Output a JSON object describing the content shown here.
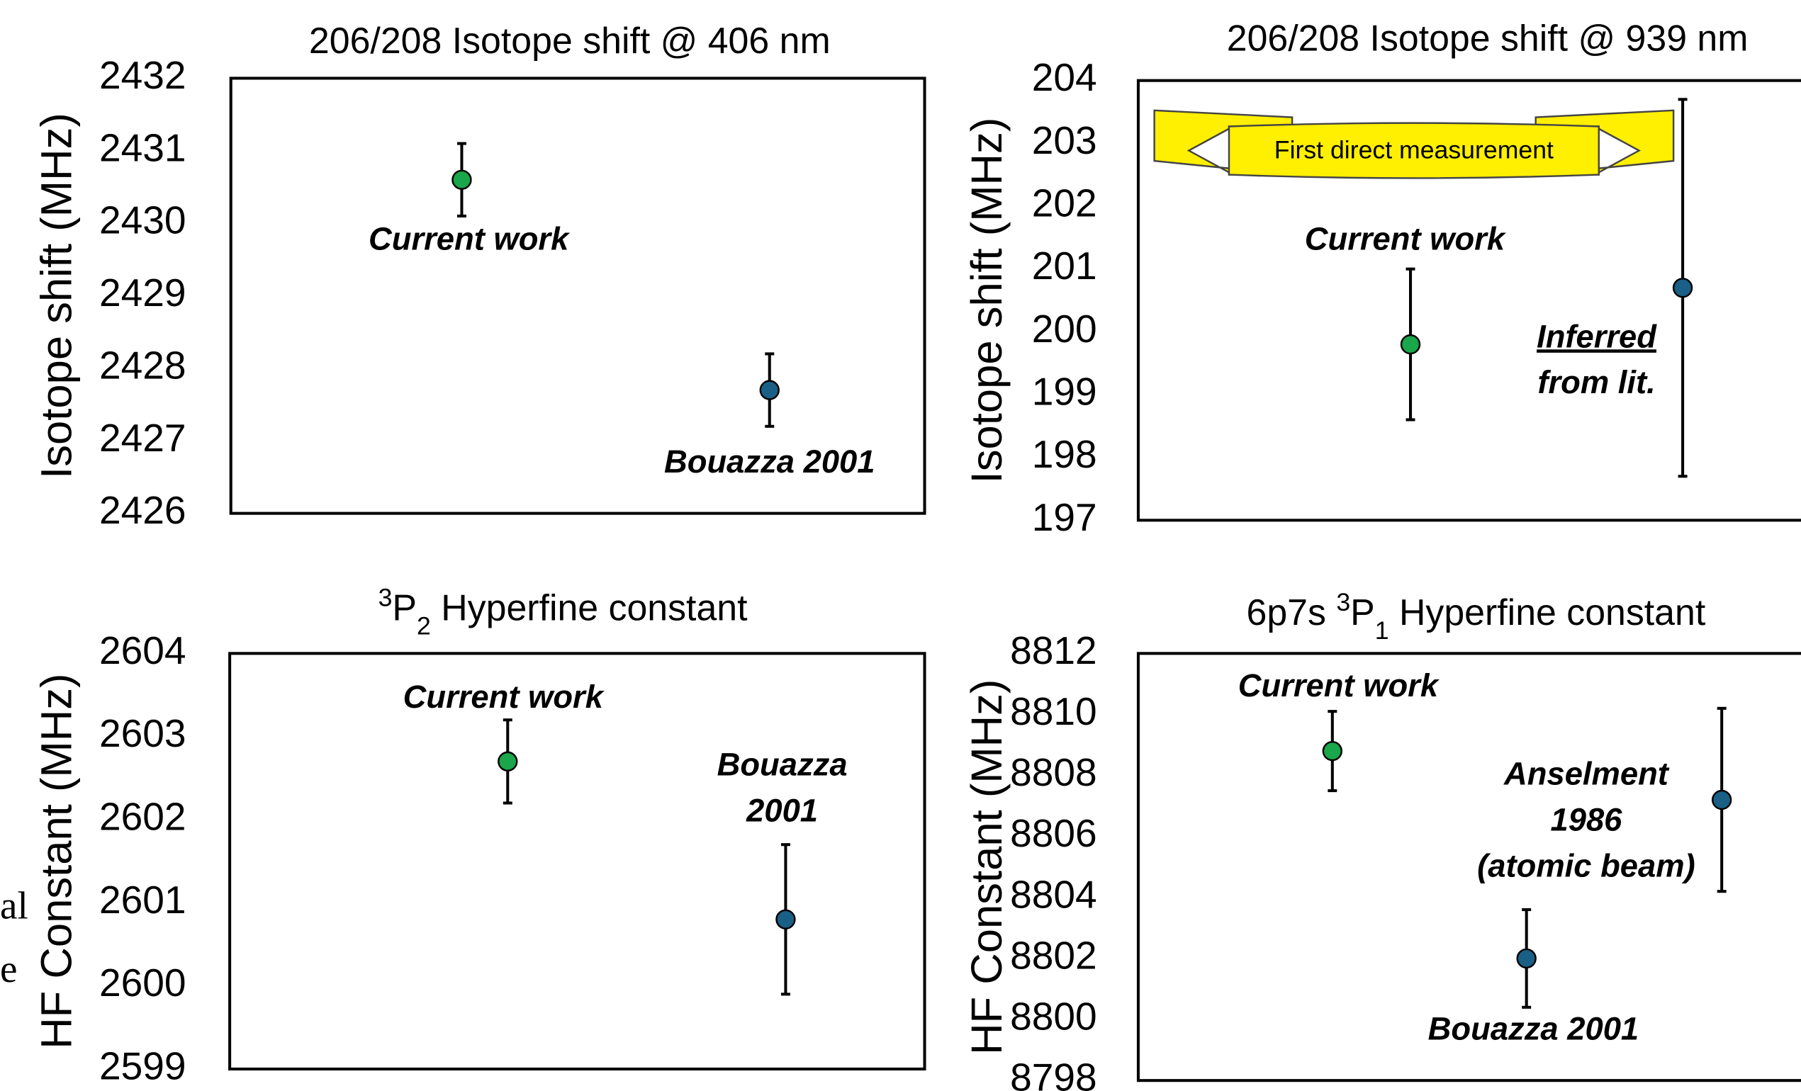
{
  "fragments": [
    "al",
    "e"
  ],
  "chart_data": [
    {
      "type": "scatter",
      "title": "206/208 Isotope shift @ 406 nm",
      "y_label": "Isotope shift (MHz)",
      "ylim": [
        2426,
        2432
      ],
      "yticks": [
        2426,
        2427,
        2428,
        2429,
        2430,
        2431,
        2432
      ],
      "series": [
        {
          "label": [
            "Current work"
          ],
          "color": "#1aa64a",
          "values": [
            2430.6
          ],
          "errors": [
            0.5
          ]
        },
        {
          "label": [
            "Bouazza 2001"
          ],
          "color": "#1a5f85",
          "values": [
            2427.7
          ],
          "errors": [
            0.5
          ]
        }
      ]
    },
    {
      "type": "scatter",
      "title": "206/208 Isotope shift @ 939 nm",
      "y_label": "Isotope shift (MHz)",
      "ylim": [
        197,
        204
      ],
      "yticks": [
        197,
        198,
        199,
        200,
        201,
        202,
        203,
        204
      ],
      "banner": "First direct measurement",
      "series": [
        {
          "label": [
            "Current work"
          ],
          "color": "#1aa64a",
          "values": [
            199.8
          ],
          "errors": [
            1.2
          ]
        },
        {
          "label": [
            "Inferred",
            "from lit."
          ],
          "color": "#1a5f85",
          "values": [
            200.7
          ],
          "errors": [
            3.0
          ]
        }
      ]
    },
    {
      "type": "scatter",
      "title": [
        "3",
        "P",
        "2",
        " Hyperfine constant"
      ],
      "y_label": "HF Constant (MHz)",
      "ylim": [
        2599,
        2604
      ],
      "yticks": [
        2599,
        2600,
        2601,
        2602,
        2603,
        2604
      ],
      "series": [
        {
          "label": [
            "Current work"
          ],
          "color": "#1aa64a",
          "values": [
            2602.7
          ],
          "errors": [
            0.5
          ]
        },
        {
          "label": [
            "Bouazza",
            "2001"
          ],
          "color": "#1a5f85",
          "values": [
            2600.8
          ],
          "errors": [
            0.9
          ]
        }
      ]
    },
    {
      "type": "scatter",
      "title": [
        "6p7s ",
        "3",
        "P",
        "1",
        " Hyperfine constant"
      ],
      "y_label": "HF Constant (MHz)",
      "ylim": [
        8798,
        8812
      ],
      "yticks": [
        8798,
        8800,
        8802,
        8804,
        8806,
        8808,
        8810,
        8812
      ],
      "series": [
        {
          "label": [
            "Current work"
          ],
          "color": "#1aa64a",
          "values": [
            8808.8
          ],
          "errors": [
            1.3
          ]
        },
        {
          "label": [
            "Bouazza 2001"
          ],
          "color": "#1a5f85",
          "values": [
            8802.0
          ],
          "errors": [
            1.6
          ]
        },
        {
          "label": [
            "Anselment",
            "1986",
            "(atomic beam)"
          ],
          "color": "#1a5f85",
          "values": [
            8807.2
          ],
          "errors": [
            3.0
          ]
        }
      ]
    }
  ]
}
